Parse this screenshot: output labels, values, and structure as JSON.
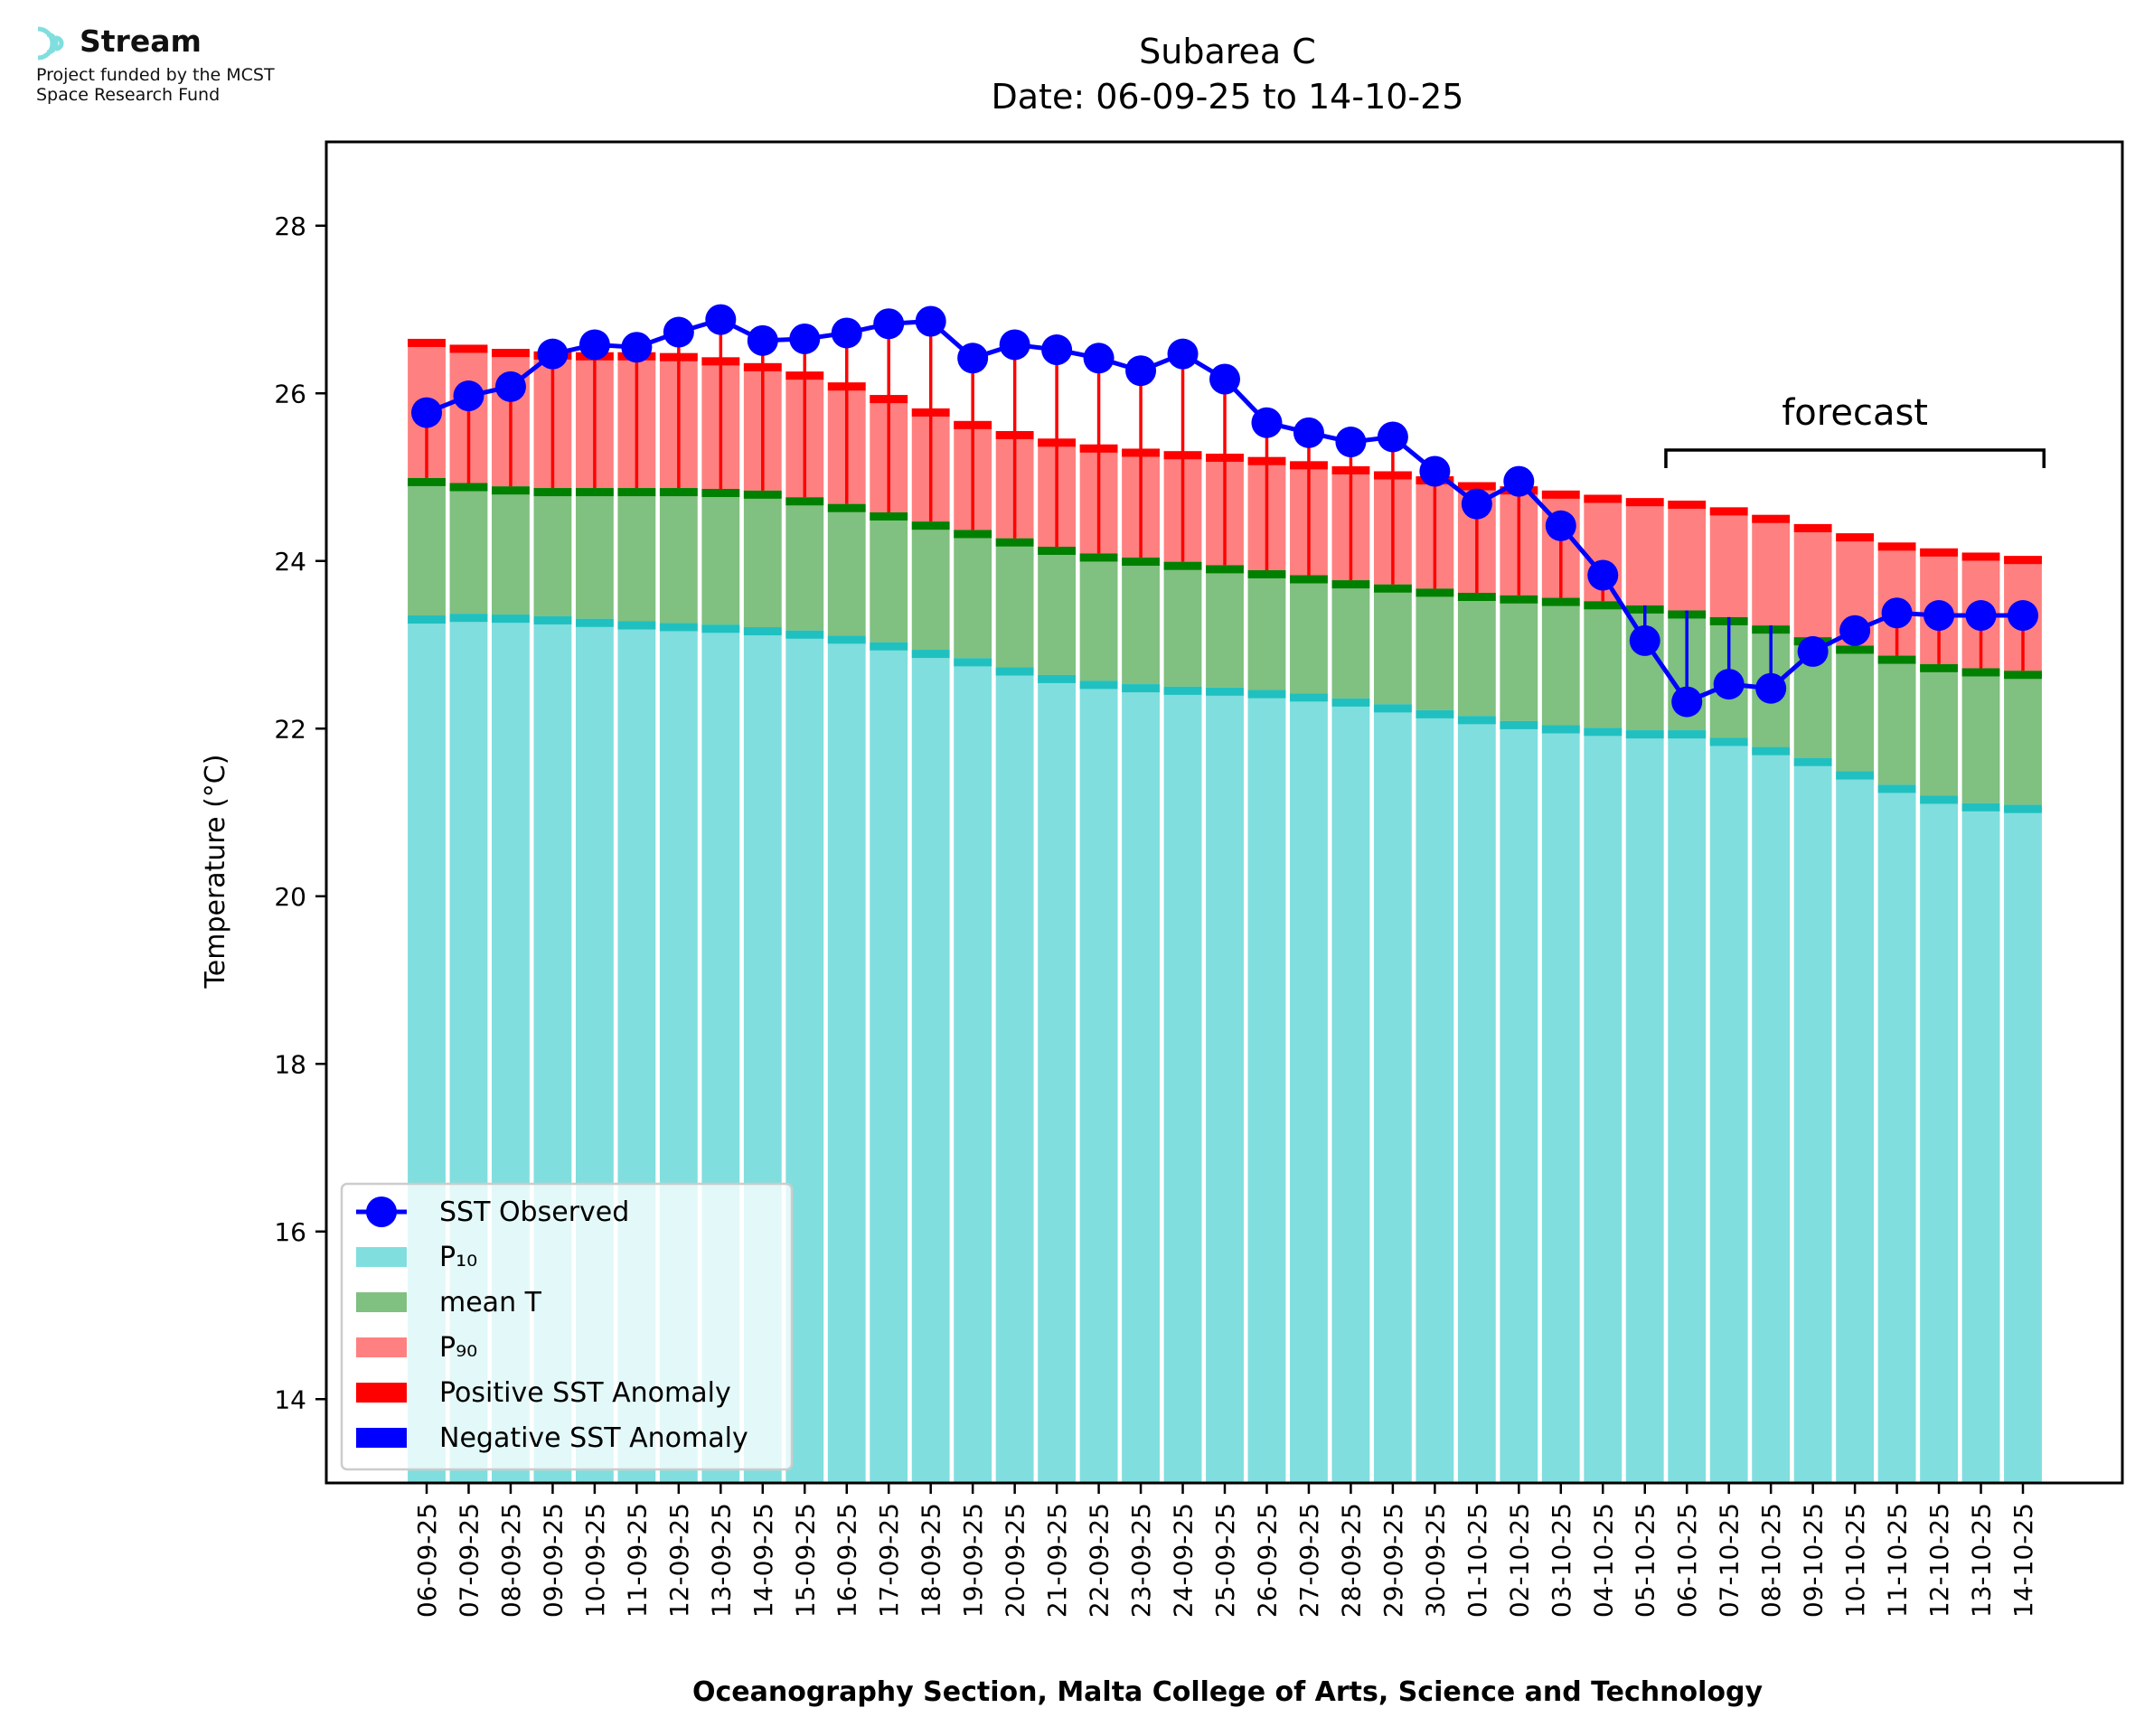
{
  "logo": {
    "name": "Stream",
    "funding_line1": "Project funded by the MCST",
    "funding_line2": "Space Research Fund"
  },
  "chart_data": {
    "type": "bar",
    "title_line1": "Subarea C",
    "title_line2": "Date: 06-09-25 to 14-10-25",
    "xlabel": "Oceanography Section, Malta College of Arts, Science and Technology",
    "ylabel": "Temperature (°C)",
    "ylim": [
      13.0,
      29.0
    ],
    "yticks": [
      14,
      16,
      18,
      20,
      22,
      24,
      26,
      28
    ],
    "grid": false,
    "legend_position": "lower-left",
    "forecast_label": "forecast",
    "forecast_range": [
      "06-10-25",
      "14-10-25"
    ],
    "categories": [
      "06-09-25",
      "07-09-25",
      "08-09-25",
      "09-09-25",
      "10-09-25",
      "11-09-25",
      "12-09-25",
      "13-09-25",
      "14-09-25",
      "15-09-25",
      "16-09-25",
      "17-09-25",
      "18-09-25",
      "19-09-25",
      "20-09-25",
      "21-09-25",
      "22-09-25",
      "23-09-25",
      "24-09-25",
      "25-09-25",
      "26-09-25",
      "27-09-25",
      "28-09-25",
      "29-09-25",
      "30-09-25",
      "01-10-25",
      "02-10-25",
      "03-10-25",
      "04-10-25",
      "05-10-25",
      "06-10-25",
      "07-10-25",
      "08-10-25",
      "09-10-25",
      "10-10-25",
      "11-10-25",
      "12-10-25",
      "13-10-25",
      "14-10-25"
    ],
    "series": [
      {
        "name": "SST Observed",
        "kind": "line",
        "color": "#0000ff",
        "values": [
          25.77,
          25.97,
          26.08,
          26.47,
          26.58,
          26.55,
          26.73,
          26.88,
          26.63,
          26.65,
          26.72,
          26.83,
          26.86,
          26.42,
          26.58,
          26.52,
          26.42,
          26.27,
          26.47,
          26.17,
          25.65,
          25.53,
          25.42,
          25.48,
          25.07,
          24.68,
          24.95,
          24.42,
          23.83,
          23.05,
          22.32,
          22.53,
          22.48,
          22.92,
          23.17,
          23.38,
          23.35,
          23.35,
          23.35
        ]
      },
      {
        "name": "P₁₀",
        "kind": "bar",
        "color": "#80dede",
        "values": [
          23.35,
          23.37,
          23.36,
          23.34,
          23.31,
          23.28,
          23.26,
          23.24,
          23.21,
          23.17,
          23.11,
          23.03,
          22.94,
          22.84,
          22.73,
          22.64,
          22.57,
          22.53,
          22.5,
          22.49,
          22.46,
          22.42,
          22.36,
          22.29,
          22.22,
          22.15,
          22.09,
          22.04,
          22.01,
          21.98,
          21.98,
          21.89,
          21.78,
          21.65,
          21.49,
          21.33,
          21.2,
          21.11,
          21.09
        ]
      },
      {
        "name": "mean T",
        "kind": "bar",
        "color": "#80c080",
        "values": [
          24.99,
          24.93,
          24.89,
          24.87,
          24.87,
          24.87,
          24.87,
          24.86,
          24.84,
          24.76,
          24.68,
          24.58,
          24.47,
          24.37,
          24.27,
          24.17,
          24.09,
          24.04,
          23.99,
          23.95,
          23.89,
          23.83,
          23.77,
          23.72,
          23.67,
          23.62,
          23.59,
          23.56,
          23.52,
          23.47,
          23.41,
          23.33,
          23.23,
          23.09,
          22.99,
          22.87,
          22.77,
          22.72,
          22.69
        ]
      },
      {
        "name": "P₉₀",
        "kind": "bar",
        "color": "#ff8080",
        "values": [
          26.65,
          26.58,
          26.53,
          26.5,
          26.49,
          26.49,
          26.48,
          26.43,
          26.36,
          26.26,
          26.13,
          25.98,
          25.82,
          25.67,
          25.55,
          25.46,
          25.39,
          25.34,
          25.31,
          25.28,
          25.24,
          25.19,
          25.13,
          25.07,
          25.01,
          24.94,
          24.89,
          24.84,
          24.79,
          24.75,
          24.72,
          24.64,
          24.55,
          24.44,
          24.33,
          24.22,
          24.15,
          24.1,
          24.06
        ]
      },
      {
        "name": "Positive SST Anomaly",
        "kind": "legend-only",
        "color": "#ff0000"
      },
      {
        "name": "Negative SST Anomaly",
        "kind": "legend-only",
        "color": "#0000ff"
      }
    ]
  }
}
